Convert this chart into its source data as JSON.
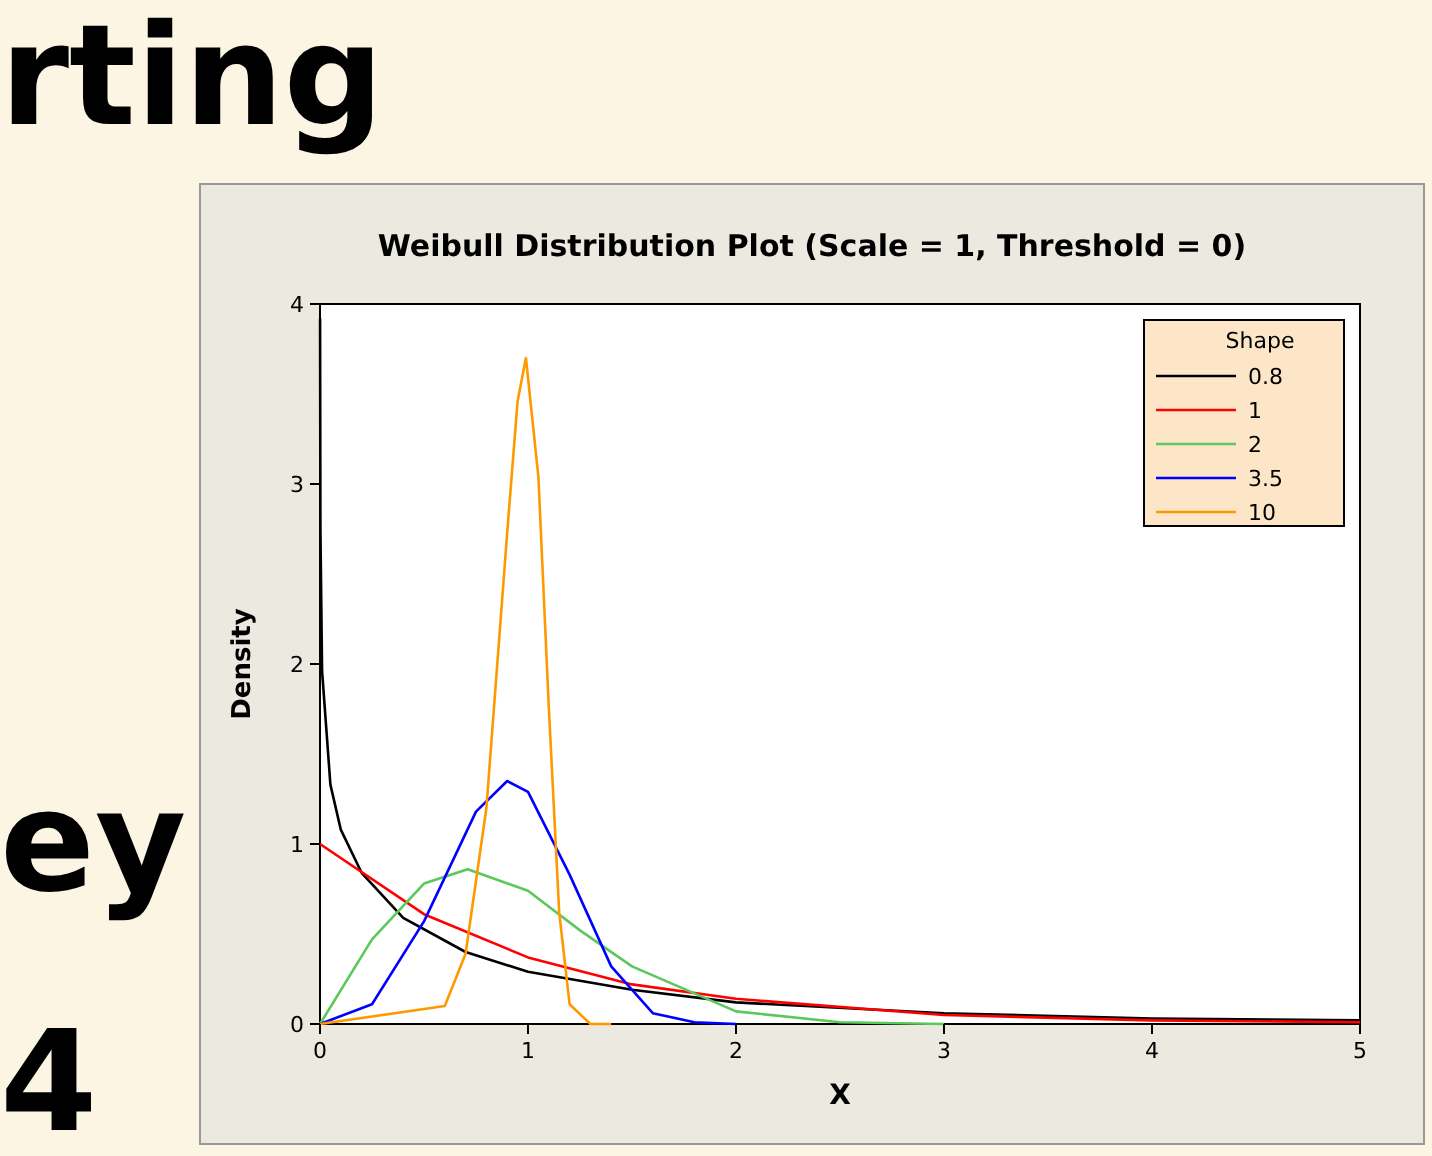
{
  "chart_data": {
    "type": "line",
    "title": "Weibull Distribution Plot (Scale = 1, Threshold = 0)",
    "xlabel": "X",
    "ylabel": "Density",
    "legend_title": "Shape",
    "legend": "top right",
    "xlim": [
      0,
      5
    ],
    "ylim": [
      0,
      4
    ],
    "xticks": [
      0,
      1,
      2,
      3,
      4,
      5
    ],
    "yticks": [
      0,
      1,
      2,
      3,
      4
    ],
    "grid": false,
    "marker": "none",
    "line_style": "solid",
    "annotations": [
      "rting",
      "ey",
      "4"
    ],
    "series": [
      {
        "name": "0.8",
        "color": "#000000",
        "x": [
          0.00035,
          0.002,
          0.01,
          0.05,
          0.1,
          0.2,
          0.4,
          0.7,
          1,
          1.5,
          2,
          3,
          4,
          5
        ],
        "values": [
          3.92,
          2.75,
          1.96,
          1.33,
          1.08,
          0.84,
          0.59,
          0.4,
          0.29,
          0.19,
          0.12,
          0.06,
          0.03,
          0.02
        ]
      },
      {
        "name": "1",
        "color": "#ff0000",
        "x": [
          0,
          0.5,
          1,
          1.5,
          2,
          3,
          4,
          5
        ],
        "values": [
          1,
          0.61,
          0.37,
          0.22,
          0.14,
          0.05,
          0.02,
          0.01
        ]
      },
      {
        "name": "2",
        "color": "#5cc85c",
        "x": [
          0,
          0.25,
          0.5,
          0.71,
          1,
          1.25,
          1.5,
          2,
          2.5,
          3
        ],
        "values": [
          0,
          0.47,
          0.78,
          0.86,
          0.74,
          0.52,
          0.32,
          0.07,
          0.01,
          0
        ]
      },
      {
        "name": "3.5",
        "color": "#0000ff",
        "x": [
          0,
          0.25,
          0.5,
          0.75,
          0.9,
          1,
          1.2,
          1.4,
          1.6,
          1.8,
          2
        ],
        "values": [
          0,
          0.11,
          0.57,
          1.18,
          1.35,
          1.29,
          0.83,
          0.32,
          0.06,
          0.01,
          0
        ]
      },
      {
        "name": "10",
        "color": "#ff9900",
        "x": [
          0,
          0.6,
          0.7,
          0.8,
          0.9,
          0.95,
          0.99,
          1.05,
          1.1,
          1.15,
          1.2,
          1.3,
          1.4
        ],
        "values": [
          0,
          0.1,
          0.39,
          1.2,
          2.73,
          3.46,
          3.7,
          3.04,
          1.76,
          0.62,
          0.11,
          0,
          0
        ]
      }
    ]
  }
}
